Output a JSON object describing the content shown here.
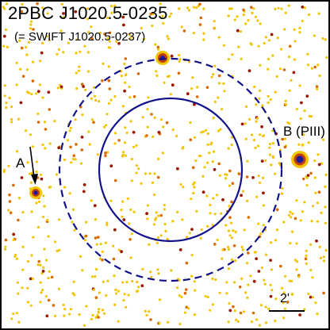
{
  "image": {
    "title": "2PBC J1020.5-0235",
    "subtitle": "(= SWIFT J1020.5-0237)",
    "labels": {
      "source_a": "A",
      "source_b": "B (PIII)",
      "scale_bar": "2'"
    },
    "colors": {
      "background": "#ffffff",
      "frame": "#000000",
      "photon_yellow": "#f2c400",
      "photon_orange": "#d86a00",
      "photon_red": "#9a1a00",
      "source_core": "#1a1a9a",
      "circle": "#11118a"
    },
    "overlays": [
      "inner-solid-circle",
      "outer-dashed-circle",
      "arrow-to-source-a",
      "scale-bar"
    ]
  }
}
